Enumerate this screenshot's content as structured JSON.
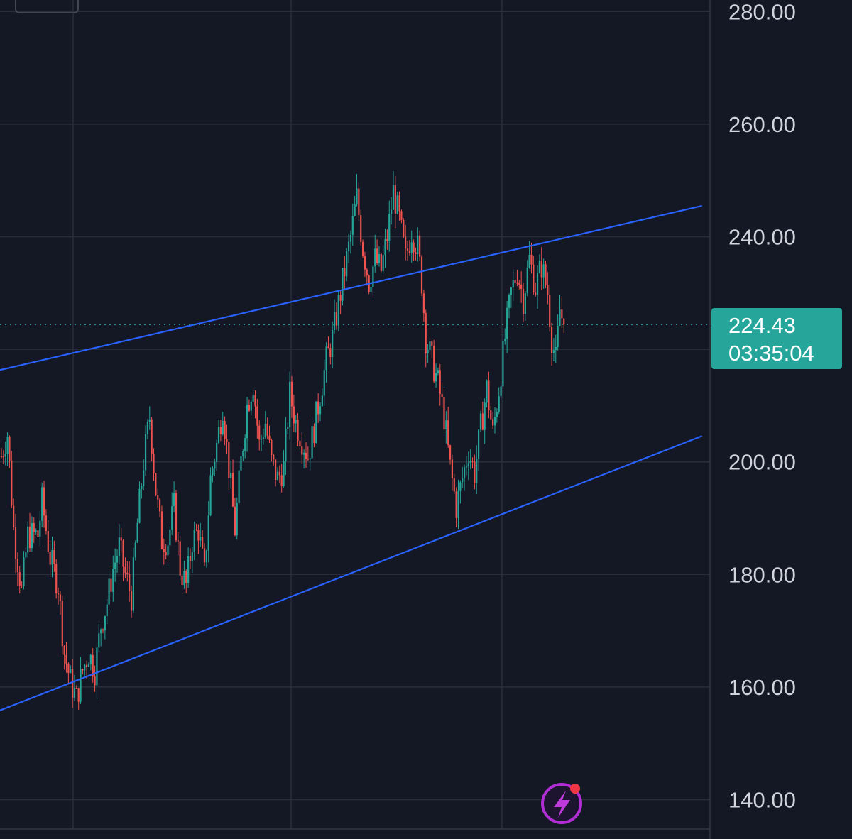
{
  "chart_data": {
    "type": "candlestick",
    "y_axis": {
      "ticks": [
        140,
        160,
        180,
        200,
        220,
        240,
        260,
        280
      ],
      "tick_labels": [
        "140.00",
        "160.00",
        "180.00",
        "200.00",
        "240.00",
        "260.00",
        "280.00"
      ],
      "range": [
        137,
        282
      ],
      "position": "right"
    },
    "grid": true,
    "colors": {
      "background": "#141824",
      "grid": "#2a2e39",
      "up": "#26a69a",
      "down": "#ef5350",
      "trendline": "#2962ff",
      "badge": "#26a69a"
    },
    "current_price": {
      "value": 224.43,
      "label": "224.43",
      "countdown": "03:35:04"
    },
    "price_path": [
      {
        "i": 0,
        "p": 201
      },
      {
        "i": 3,
        "p": 205
      },
      {
        "i": 6,
        "p": 188
      },
      {
        "i": 10,
        "p": 177
      },
      {
        "i": 13,
        "p": 187
      },
      {
        "i": 18,
        "p": 187
      },
      {
        "i": 20,
        "p": 193
      },
      {
        "i": 24,
        "p": 183
      },
      {
        "i": 28,
        "p": 178
      },
      {
        "i": 31,
        "p": 166
      },
      {
        "i": 34,
        "p": 161
      },
      {
        "i": 37,
        "p": 158
      },
      {
        "i": 40,
        "p": 163
      },
      {
        "i": 43,
        "p": 166
      },
      {
        "i": 46,
        "p": 163
      },
      {
        "i": 49,
        "p": 171
      },
      {
        "i": 52,
        "p": 175
      },
      {
        "i": 55,
        "p": 181
      },
      {
        "i": 58,
        "p": 185
      },
      {
        "i": 61,
        "p": 180
      },
      {
        "i": 64,
        "p": 176
      },
      {
        "i": 67,
        "p": 189
      },
      {
        "i": 70,
        "p": 200
      },
      {
        "i": 73,
        "p": 208
      },
      {
        "i": 76,
        "p": 195
      },
      {
        "i": 79,
        "p": 186
      },
      {
        "i": 82,
        "p": 186
      },
      {
        "i": 85,
        "p": 192
      },
      {
        "i": 88,
        "p": 181
      },
      {
        "i": 91,
        "p": 178
      },
      {
        "i": 94,
        "p": 186
      },
      {
        "i": 97,
        "p": 188
      },
      {
        "i": 100,
        "p": 180
      },
      {
        "i": 103,
        "p": 197
      },
      {
        "i": 106,
        "p": 203
      },
      {
        "i": 109,
        "p": 210
      },
      {
        "i": 112,
        "p": 199
      },
      {
        "i": 115,
        "p": 188
      },
      {
        "i": 118,
        "p": 200
      },
      {
        "i": 121,
        "p": 210
      },
      {
        "i": 124,
        "p": 214
      },
      {
        "i": 127,
        "p": 203
      },
      {
        "i": 130,
        "p": 207
      },
      {
        "i": 133,
        "p": 200
      },
      {
        "i": 136,
        "p": 197
      },
      {
        "i": 139,
        "p": 199
      },
      {
        "i": 142,
        "p": 212
      },
      {
        "i": 145,
        "p": 207
      },
      {
        "i": 148,
        "p": 204
      },
      {
        "i": 151,
        "p": 201
      },
      {
        "i": 154,
        "p": 206
      },
      {
        "i": 157,
        "p": 212
      },
      {
        "i": 160,
        "p": 218
      },
      {
        "i": 163,
        "p": 222
      },
      {
        "i": 166,
        "p": 228
      },
      {
        "i": 169,
        "p": 234
      },
      {
        "i": 172,
        "p": 240
      },
      {
        "i": 175,
        "p": 247
      },
      {
        "i": 178,
        "p": 238
      },
      {
        "i": 181,
        "p": 232
      },
      {
        "i": 184,
        "p": 236
      },
      {
        "i": 187,
        "p": 234
      },
      {
        "i": 190,
        "p": 240
      },
      {
        "i": 193,
        "p": 248
      },
      {
        "i": 196,
        "p": 243
      },
      {
        "i": 199,
        "p": 236
      },
      {
        "i": 202,
        "p": 241
      },
      {
        "i": 205,
        "p": 238
      },
      {
        "i": 207,
        "p": 232
      },
      {
        "i": 209,
        "p": 222
      },
      {
        "i": 212,
        "p": 218
      },
      {
        "i": 215,
        "p": 214
      },
      {
        "i": 218,
        "p": 208
      },
      {
        "i": 221,
        "p": 199
      },
      {
        "i": 224,
        "p": 192
      },
      {
        "i": 227,
        "p": 197
      },
      {
        "i": 230,
        "p": 202
      },
      {
        "i": 233,
        "p": 198
      },
      {
        "i": 236,
        "p": 206
      },
      {
        "i": 239,
        "p": 213
      },
      {
        "i": 242,
        "p": 205
      },
      {
        "i": 245,
        "p": 213
      },
      {
        "i": 248,
        "p": 222
      },
      {
        "i": 251,
        "p": 230
      },
      {
        "i": 254,
        "p": 234
      },
      {
        "i": 257,
        "p": 229
      },
      {
        "i": 260,
        "p": 236
      },
      {
        "i": 263,
        "p": 231
      },
      {
        "i": 266,
        "p": 235
      },
      {
        "i": 269,
        "p": 230
      },
      {
        "i": 271,
        "p": 222
      },
      {
        "i": 273,
        "p": 218
      },
      {
        "i": 275,
        "p": 227
      },
      {
        "i": 277,
        "p": 224.4
      }
    ],
    "trendlines": [
      {
        "from": {
          "i": -40,
          "p": 213
        },
        "to": {
          "i": 345,
          "p": 245.5
        }
      },
      {
        "from": {
          "i": -40,
          "p": 150.3
        },
        "to": {
          "i": 345,
          "p": 204.6
        }
      }
    ]
  }
}
